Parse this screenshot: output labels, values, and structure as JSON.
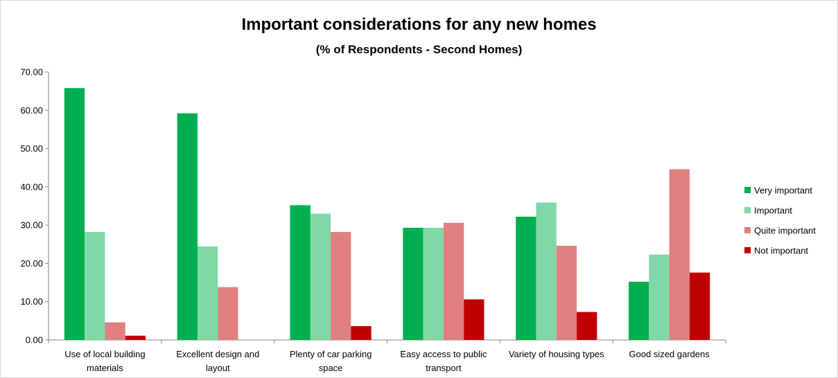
{
  "chart_data": {
    "type": "bar",
    "title": "Important considerations for any new homes",
    "subtitle": "(%  of Respondents - Second Homes)",
    "xlabel": "",
    "ylabel": "",
    "ylim": [
      0,
      70
    ],
    "yticks": [
      "0.00",
      "10.00",
      "20.00",
      "30.00",
      "40.00",
      "50.00",
      "60.00",
      "70.00"
    ],
    "grid": false,
    "legend_position": "right",
    "categories": [
      [
        "Use of local building",
        "materials"
      ],
      [
        "Excellent design and",
        "layout"
      ],
      [
        "Plenty of car parking",
        "space"
      ],
      [
        "Easy access to public",
        "transport"
      ],
      [
        "Variety of housing types"
      ],
      [
        "Good sized gardens"
      ]
    ],
    "series": [
      {
        "name": "Very important",
        "color": "#00b050",
        "values": [
          65.8,
          59.2,
          35.2,
          29.3,
          32.2,
          15.2
        ]
      },
      {
        "name": "Important",
        "color": "#80d8a8",
        "values": [
          28.2,
          24.4,
          33.0,
          29.3,
          35.9,
          22.3
        ]
      },
      {
        "name": "Quite important",
        "color": "#e08080",
        "values": [
          4.6,
          13.8,
          28.2,
          30.6,
          24.6,
          44.6
        ]
      },
      {
        "name": "Not important",
        "color": "#c00000",
        "values": [
          1.1,
          0.0,
          3.6,
          10.6,
          7.3,
          17.6
        ]
      }
    ]
  }
}
